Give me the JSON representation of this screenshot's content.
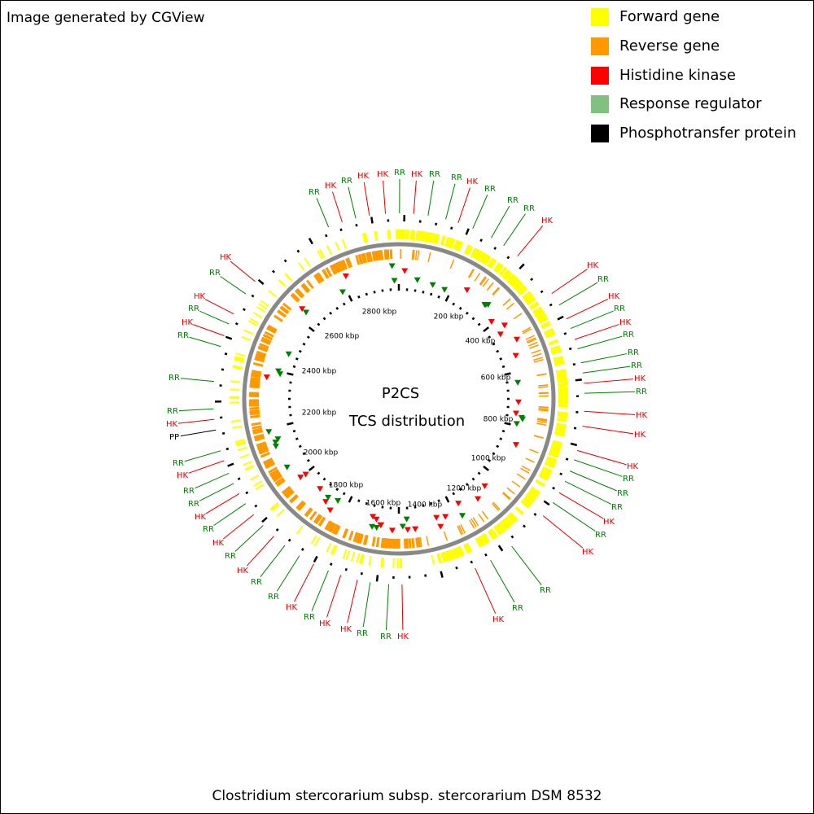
{
  "header": {
    "credit": "Image generated by CGView"
  },
  "legend": [
    {
      "text": "Forward gene",
      "color": "#ffff00"
    },
    {
      "text": "Reverse gene",
      "color": "#ff9900"
    },
    {
      "text": "Histidine kinase",
      "color": "#ff0000"
    },
    {
      "text": "Response regulator",
      "color": "#80c080"
    },
    {
      "text": "Phosphotransfer protein",
      "color": "#000000"
    }
  ],
  "center": {
    "line1": "P2CS",
    "line2": "TCS distribution"
  },
  "scale_labels": [
    "200 kbp",
    "400 kbp",
    "600 kbp",
    "800 kbp",
    "1000 kbp",
    "1200 kbp",
    "1400 kbp",
    "1600 kbp",
    "1800 kbp",
    "2000 kbp",
    "2200 kbp",
    "2400 kbp",
    "2600 kbp",
    "2800 kbp"
  ],
  "feature_labels": [
    {
      "text": "RR",
      "color": "#008000"
    },
    {
      "text": "HK",
      "color": "#e00000"
    },
    {
      "text": "RR",
      "color": "#008000"
    },
    {
      "text": "HK",
      "color": "#e00000"
    },
    {
      "text": "HK",
      "color": "#e00000"
    },
    {
      "text": "RR",
      "color": "#008000"
    },
    {
      "text": "HK",
      "color": "#e00000"
    },
    {
      "text": "RR",
      "color": "#008000"
    },
    {
      "text": "RR",
      "color": "#008000"
    },
    {
      "text": "HK",
      "color": "#e00000"
    },
    {
      "text": "RR",
      "color": "#008000"
    },
    {
      "text": "RR",
      "color": "#008000"
    },
    {
      "text": "RR",
      "color": "#008000"
    },
    {
      "text": "HK",
      "color": "#e00000"
    },
    {
      "text": "HK",
      "color": "#e00000"
    },
    {
      "text": "RR",
      "color": "#008000"
    },
    {
      "text": "HK",
      "color": "#e00000"
    },
    {
      "text": "RR",
      "color": "#008000"
    },
    {
      "text": "HK",
      "color": "#e00000"
    },
    {
      "text": "RR",
      "color": "#008000"
    },
    {
      "text": "RR",
      "color": "#008000"
    },
    {
      "text": "RR",
      "color": "#008000"
    },
    {
      "text": "HK",
      "color": "#e00000"
    },
    {
      "text": "RR",
      "color": "#008000"
    },
    {
      "text": "HK",
      "color": "#e00000"
    },
    {
      "text": "HK",
      "color": "#e00000"
    },
    {
      "text": "HK",
      "color": "#e00000"
    },
    {
      "text": "RR",
      "color": "#008000"
    },
    {
      "text": "RR",
      "color": "#008000"
    },
    {
      "text": "RR",
      "color": "#008000"
    },
    {
      "text": "HK",
      "color": "#e00000"
    },
    {
      "text": "RR",
      "color": "#008000"
    },
    {
      "text": "HK",
      "color": "#e00000"
    },
    {
      "text": "RR",
      "color": "#008000"
    },
    {
      "text": "RR",
      "color": "#008000"
    },
    {
      "text": "HK",
      "color": "#e00000"
    },
    {
      "text": "HK",
      "color": "#e00000"
    },
    {
      "text": "RR",
      "color": "#008000"
    },
    {
      "text": "RR",
      "color": "#008000"
    },
    {
      "text": "HK",
      "color": "#e00000"
    },
    {
      "text": "HK",
      "color": "#e00000"
    },
    {
      "text": "RR",
      "color": "#008000"
    },
    {
      "text": "HK",
      "color": "#e00000"
    },
    {
      "text": "RR",
      "color": "#008000"
    },
    {
      "text": "RR",
      "color": "#008000"
    },
    {
      "text": "HK",
      "color": "#e00000"
    },
    {
      "text": "RR",
      "color": "#008000"
    },
    {
      "text": "HK",
      "color": "#e00000"
    },
    {
      "text": "RR",
      "color": "#008000"
    },
    {
      "text": "HK",
      "color": "#e00000"
    },
    {
      "text": "RR",
      "color": "#008000"
    },
    {
      "text": "RR",
      "color": "#008000"
    },
    {
      "text": "HK",
      "color": "#e00000"
    },
    {
      "text": "RR",
      "color": "#008000"
    },
    {
      "text": "PP",
      "color": "#000000"
    },
    {
      "text": "HK",
      "color": "#e00000"
    },
    {
      "text": "RR",
      "color": "#008000"
    },
    {
      "text": "RR",
      "color": "#008000"
    },
    {
      "text": "RR",
      "color": "#008000"
    },
    {
      "text": "HK",
      "color": "#e00000"
    },
    {
      "text": "RR",
      "color": "#008000"
    },
    {
      "text": "HK",
      "color": "#e00000"
    },
    {
      "text": "RR",
      "color": "#008000"
    },
    {
      "text": "HK",
      "color": "#e00000"
    }
  ],
  "caption": "Clostridium stercorarium subsp. stercorarium DSM 8532"
}
